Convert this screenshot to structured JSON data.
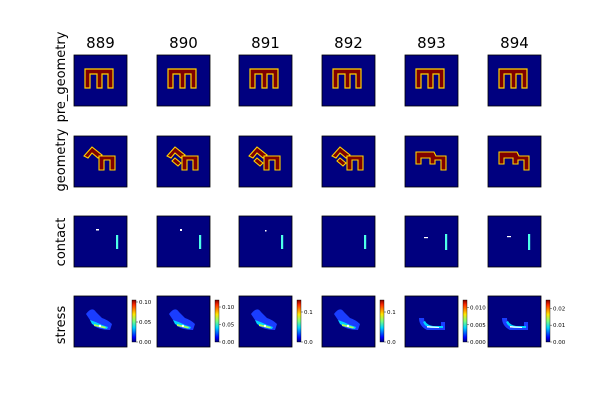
{
  "chart_data": {
    "type": "heatmap",
    "columns": [
      "889",
      "890",
      "891",
      "892",
      "893",
      "894"
    ],
    "rows": [
      "pre_geometry",
      "geometry",
      "contact",
      "stress"
    ],
    "colormap": "jet",
    "colors": {
      "background": "#00007f",
      "geometry_fill": "#7f0000",
      "geometry_edge": "#ffd200",
      "contact_mark": "#4dffe8",
      "axes_frame": "#000000"
    },
    "stress_colorbars": [
      {
        "column": "889",
        "min": 0.0,
        "max": 0.105,
        "ticks": [
          "0.00",
          "0.05",
          "0.10"
        ],
        "tick_values": [
          0.0,
          0.05,
          0.1
        ]
      },
      {
        "column": "890",
        "min": 0.0,
        "max": 0.12,
        "ticks": [
          "0.00",
          "0.05",
          "0.10"
        ],
        "tick_values": [
          0.0,
          0.05,
          0.1
        ]
      },
      {
        "column": "891",
        "min": 0.0,
        "max": 0.14,
        "ticks": [
          "0.0",
          "0.1"
        ],
        "tick_values": [
          0.0,
          0.1
        ]
      },
      {
        "column": "892",
        "min": 0.0,
        "max": 0.14,
        "ticks": [
          "0.0",
          "0.1"
        ],
        "tick_values": [
          0.0,
          0.1
        ]
      },
      {
        "column": "893",
        "min": 0.0,
        "max": 0.0122,
        "ticks": [
          "0.000",
          "0.005",
          "0.010"
        ],
        "tick_values": [
          0.0,
          0.005,
          0.01
        ]
      },
      {
        "column": "894",
        "min": 0.0,
        "max": 0.025,
        "ticks": [
          "0.00",
          "0.01",
          "0.02"
        ],
        "tick_values": [
          0.0,
          0.01,
          0.02
        ]
      }
    ],
    "grid": false
  }
}
